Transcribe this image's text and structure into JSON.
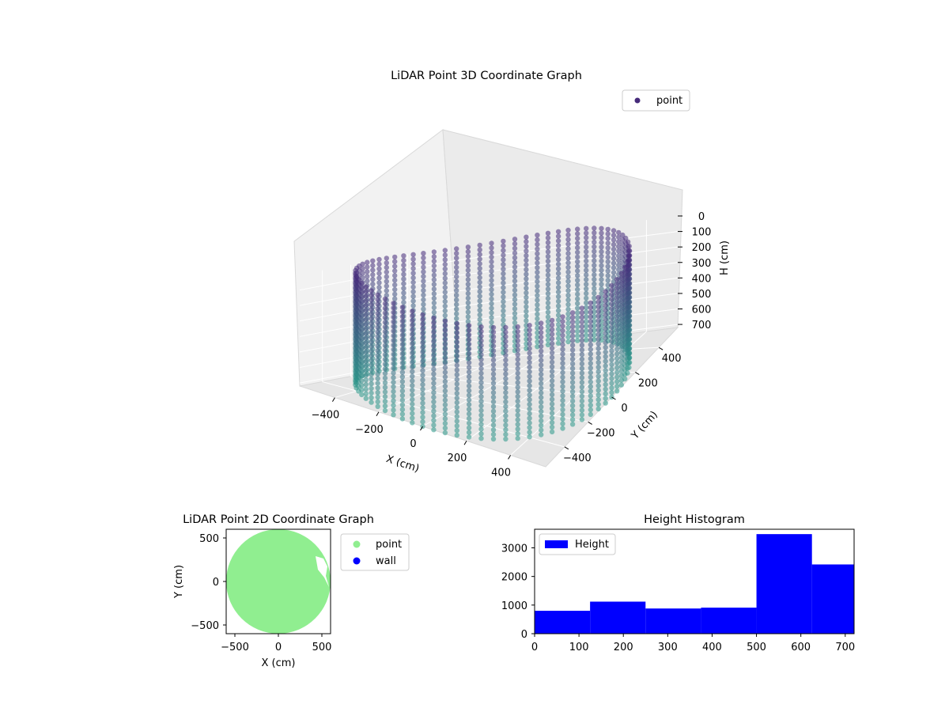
{
  "chart_data": [
    {
      "type": "scatter3d",
      "title": "LiDAR Point 3D Coordinate Graph",
      "xlabel": "X (cm)",
      "ylabel": "Y (cm)",
      "zlabel": "H (cm)",
      "xticks": [
        "−400",
        "−200",
        "0",
        "200",
        "400"
      ],
      "yticks": [
        "−400",
        "−200",
        "0",
        "200",
        "400"
      ],
      "zticks": [
        "0",
        "100",
        "200",
        "300",
        "400",
        "500",
        "600",
        "700"
      ],
      "xlim": [
        -560,
        560
      ],
      "ylim": [
        -560,
        560
      ],
      "zlim": [
        0,
        720
      ],
      "z_axis_inverted": true,
      "legend": {
        "labels": [
          "point"
        ],
        "location": "upper right"
      },
      "colormap": "viridis",
      "grid": true,
      "series": [
        {
          "name": "point",
          "shape": "cylindrical wall of points with radius ~560 cm from height 0 to ~720 cm",
          "radius": 560,
          "h_range": [
            0,
            720
          ],
          "color_top": "#462a7a",
          "color_bottom": "#2a9889"
        }
      ]
    },
    {
      "type": "scatter",
      "title": "LiDAR Point 2D Coordinate Graph",
      "xlabel": "X (cm)",
      "ylabel": "Y (cm)",
      "xticks": [
        "−500",
        "0",
        "500"
      ],
      "yticks": [
        "−500",
        "0",
        "500"
      ],
      "xlim": [
        -600,
        600
      ],
      "ylim": [
        -600,
        600
      ],
      "legend": {
        "labels": [
          "point",
          "wall"
        ],
        "location": "outside right"
      },
      "series": [
        {
          "name": "point",
          "color": "#90ee90",
          "region": "filled disc of radius ~580 cm"
        },
        {
          "name": "wall",
          "color": "#0000ff"
        }
      ]
    },
    {
      "type": "histogram",
      "title": "Height Histogram",
      "legend": {
        "labels": [
          "Height"
        ],
        "location": "upper left"
      },
      "xticks": [
        "0",
        "100",
        "200",
        "300",
        "400",
        "500",
        "600",
        "700"
      ],
      "yticks": [
        "0",
        "1000",
        "2000",
        "3000"
      ],
      "xlim": [
        0,
        720
      ],
      "ylim": [
        0,
        3650
      ],
      "color": "#0000ff",
      "bin_edges": [
        0,
        125,
        250,
        375,
        500,
        625,
        720
      ],
      "values": [
        800,
        1120,
        880,
        910,
        3480,
        2420
      ]
    }
  ]
}
